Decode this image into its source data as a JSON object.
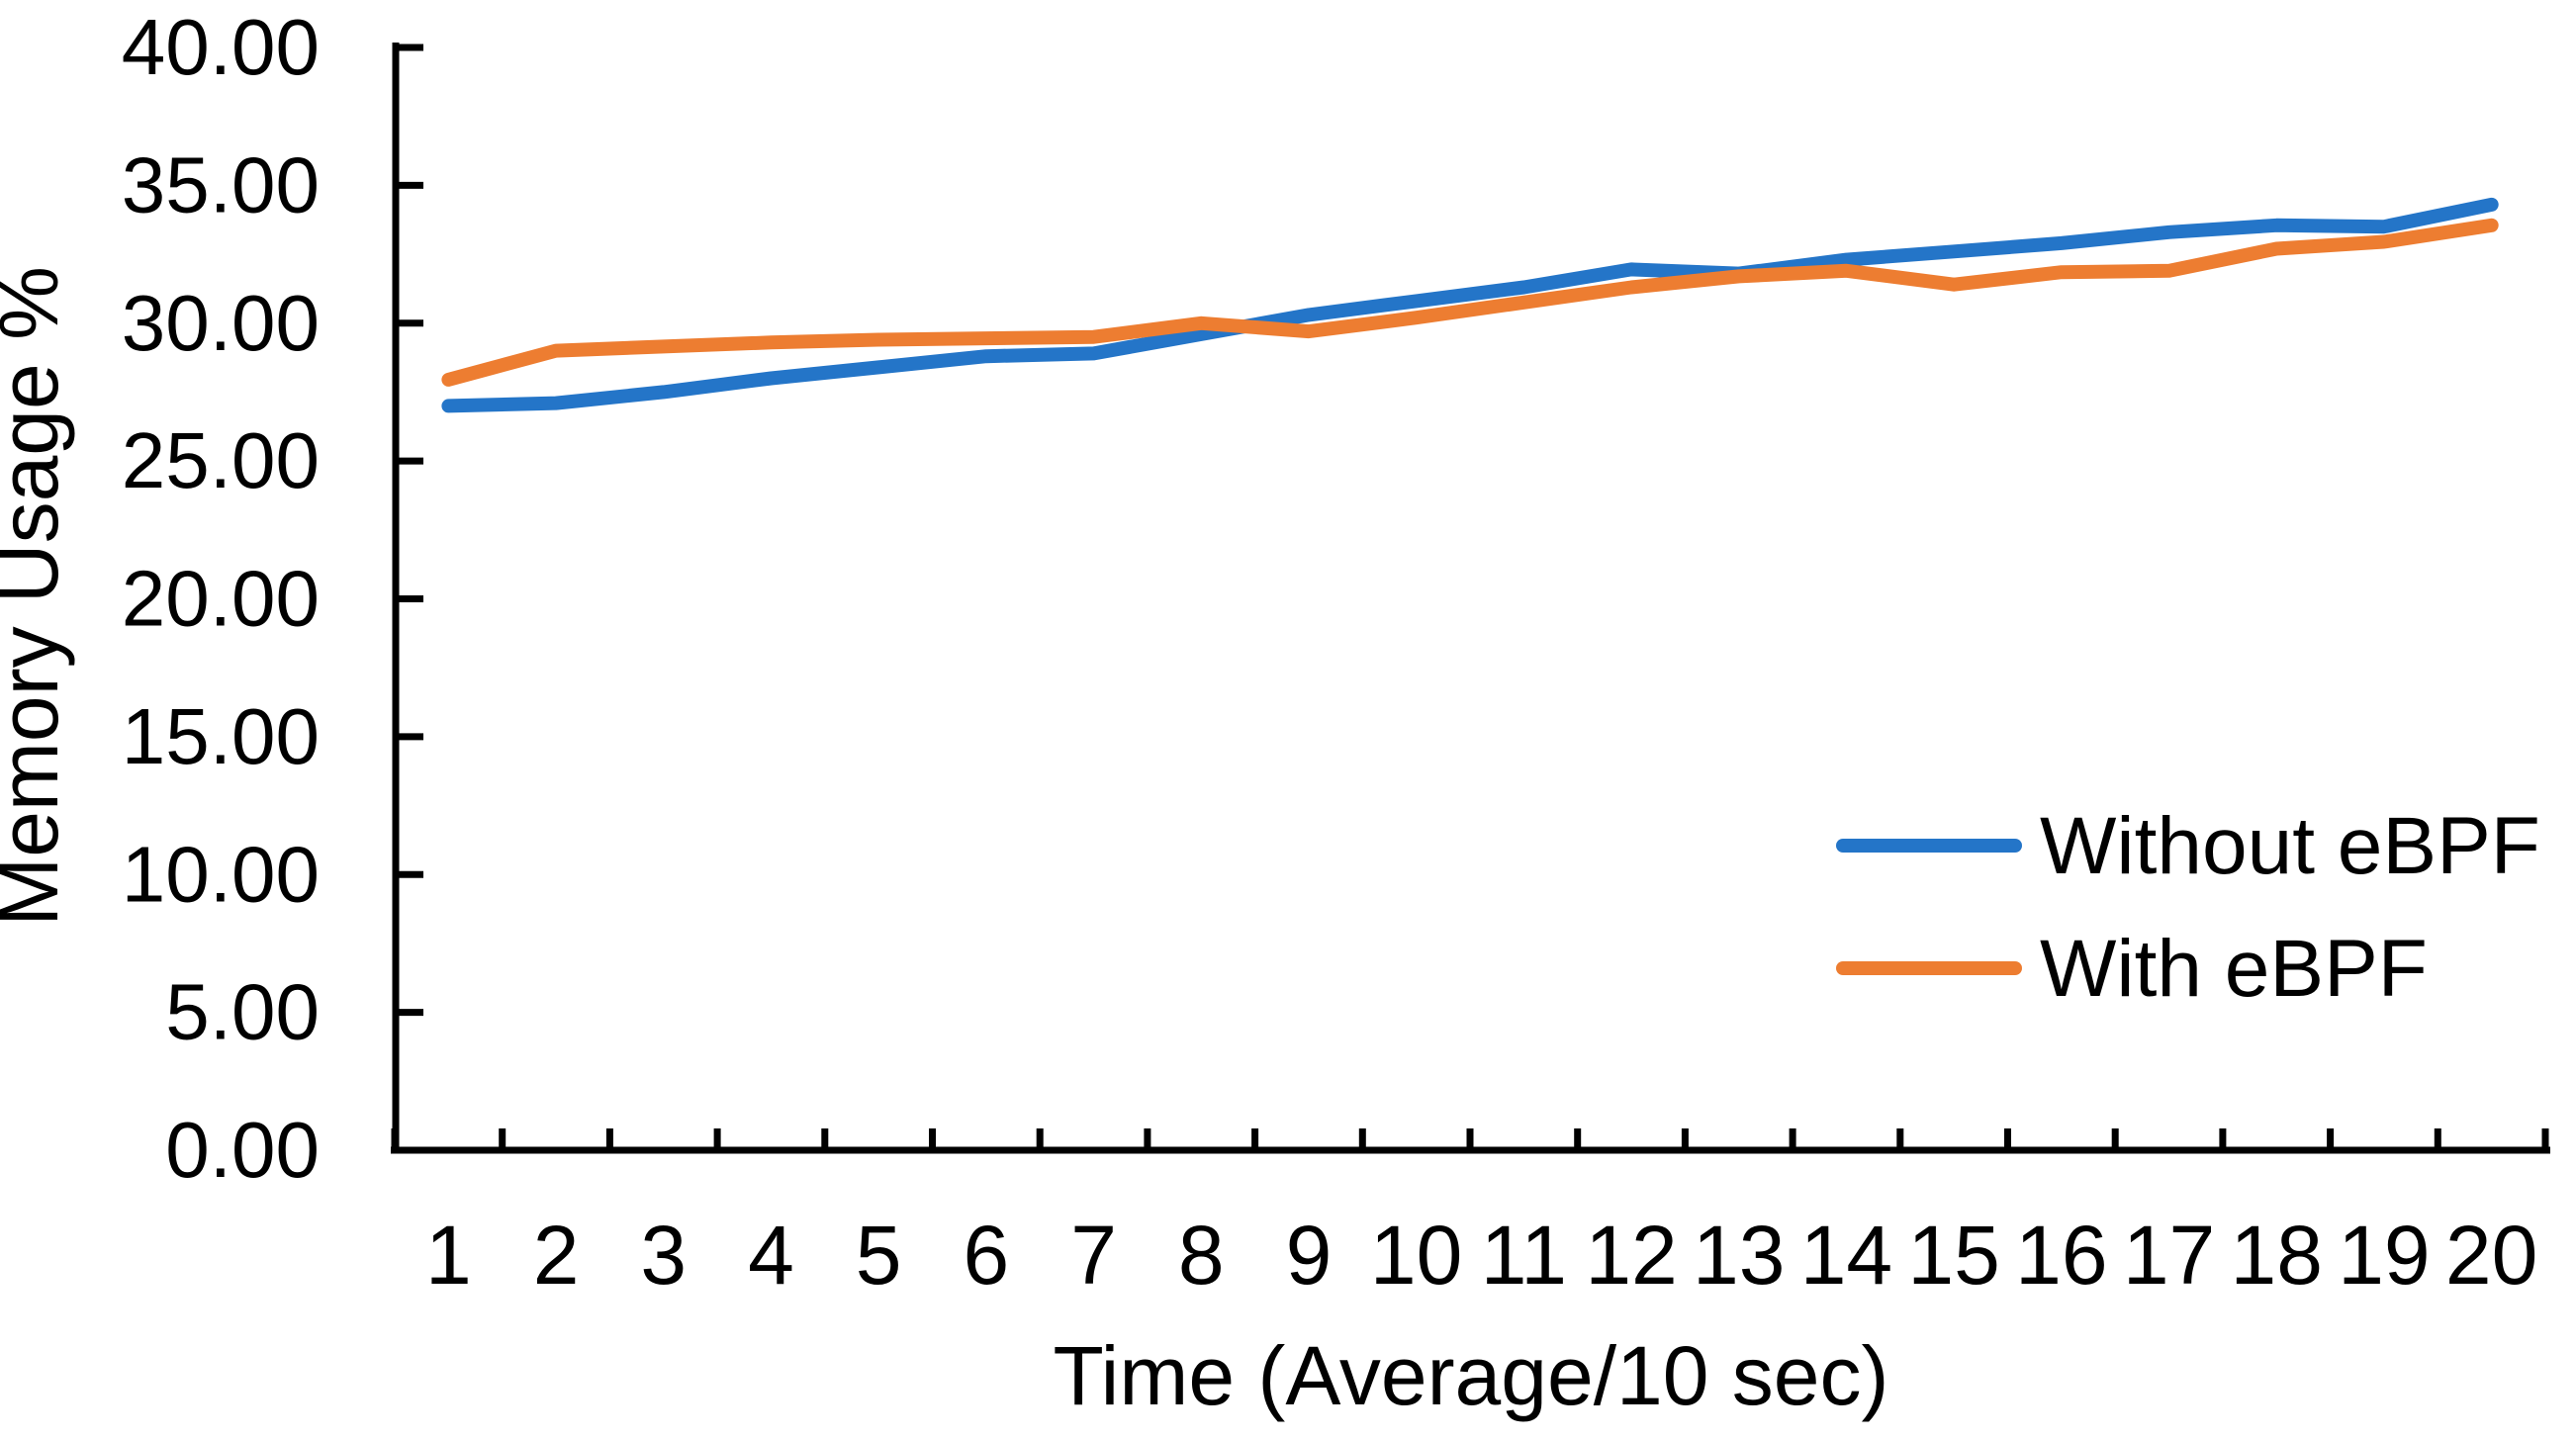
{
  "chart_data": {
    "type": "line",
    "title": "",
    "xlabel": "Time (Average/10 sec)",
    "ylabel": "Memory Usage %",
    "x": [
      1,
      2,
      3,
      4,
      5,
      6,
      7,
      8,
      9,
      10,
      11,
      12,
      13,
      14,
      15,
      16,
      17,
      18,
      19,
      20
    ],
    "xtick_labels": [
      "1",
      "2",
      "3",
      "4",
      "5",
      "6",
      "7",
      "8",
      "9",
      "10",
      "11",
      "12",
      "13",
      "14",
      "15",
      "16",
      "17",
      "18",
      "19",
      "20"
    ],
    "ylim": [
      0,
      40
    ],
    "yticks": [
      0,
      5,
      10,
      15,
      20,
      25,
      30,
      35,
      40
    ],
    "ytick_labels": [
      "0.00",
      "5.00",
      "10.00",
      "15.00",
      "20.00",
      "25.00",
      "30.00",
      "35.00",
      "40.00"
    ],
    "grid": false,
    "legend_position": "right-middle",
    "series": [
      {
        "name": "Without eBPF",
        "color": "#2475C8",
        "values": [
          27.0,
          27.1,
          27.5,
          28.0,
          28.4,
          28.8,
          28.9,
          29.6,
          30.3,
          30.8,
          31.3,
          31.95,
          31.8,
          32.3,
          32.6,
          32.9,
          33.3,
          33.55,
          33.5,
          34.3
        ]
      },
      {
        "name": "With eBPF",
        "color": "#ED7D31",
        "values": [
          27.95,
          29.0,
          29.15,
          29.3,
          29.4,
          29.45,
          29.5,
          30.0,
          29.7,
          30.2,
          30.75,
          31.3,
          31.7,
          31.9,
          31.4,
          31.85,
          31.9,
          32.7,
          32.95,
          33.55
        ]
      }
    ],
    "axis_color": "#000000"
  }
}
